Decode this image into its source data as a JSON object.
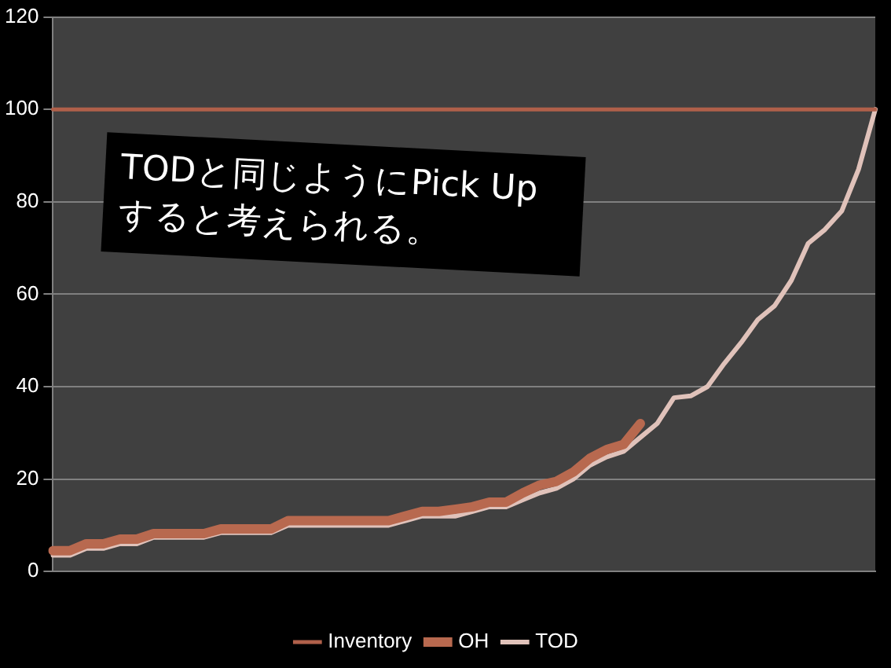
{
  "chart_data": {
    "type": "line",
    "categories": [
      null,
      null,
      null,
      null,
      null,
      null,
      null,
      null,
      null,
      null,
      null,
      null,
      null,
      null,
      null,
      null,
      null,
      null,
      null,
      null,
      null,
      null,
      null,
      null,
      null,
      null,
      null,
      null,
      null,
      null,
      null,
      null,
      null,
      null,
      null,
      null,
      null,
      null,
      null,
      null,
      null,
      null,
      null,
      null,
      null,
      null,
      null,
      null,
      null,
      null
    ],
    "series": [
      {
        "name": "Inventory",
        "color": "#b0604a",
        "values": [
          100,
          100,
          100,
          100,
          100,
          100,
          100,
          100,
          100,
          100,
          100,
          100,
          100,
          100,
          100,
          100,
          100,
          100,
          100,
          100,
          100,
          100,
          100,
          100,
          100,
          100,
          100,
          100,
          100,
          100,
          100,
          100,
          100,
          100,
          100,
          100,
          100,
          100,
          100,
          100,
          100,
          100,
          100,
          100,
          100,
          100,
          100,
          100,
          100,
          100
        ]
      },
      {
        "name": "OH",
        "color": "#b8694f",
        "values": [
          4.5,
          4.5,
          6,
          6,
          7,
          7,
          8.2,
          8.2,
          8.2,
          8.2,
          9.2,
          9.2,
          9.2,
          9.2,
          11,
          11,
          11,
          11,
          11,
          11,
          11,
          12,
          13,
          13,
          13.5,
          14,
          15,
          15,
          17,
          18.7,
          19.5,
          21.5,
          24.5,
          26.4,
          27.5,
          32,
          null,
          null,
          null,
          null,
          null,
          null,
          null,
          null,
          null,
          null,
          null,
          null,
          null,
          null
        ]
      },
      {
        "name": "TOD",
        "color": "#e0c2ba",
        "values": [
          3.5,
          3.5,
          5,
          5,
          6,
          6,
          7.4,
          7.4,
          7.4,
          7.4,
          8.4,
          8.4,
          8.4,
          8.4,
          10,
          10,
          10,
          10,
          10,
          10,
          10,
          11,
          12,
          12,
          12,
          13,
          14,
          14,
          15.5,
          17,
          18,
          20,
          23,
          24.8,
          26,
          29,
          32,
          37.6,
          38,
          40,
          45,
          49.5,
          54.5,
          57.5,
          63,
          71,
          74,
          78,
          87,
          100
        ]
      }
    ],
    "ylim": [
      0,
      120
    ],
    "yticks": [
      0,
      20,
      40,
      60,
      80,
      100,
      120
    ],
    "grid": "y",
    "legend": "bottom",
    "annotations": [
      "TODと同じようにPick Upすると考えられる。"
    ]
  }
}
